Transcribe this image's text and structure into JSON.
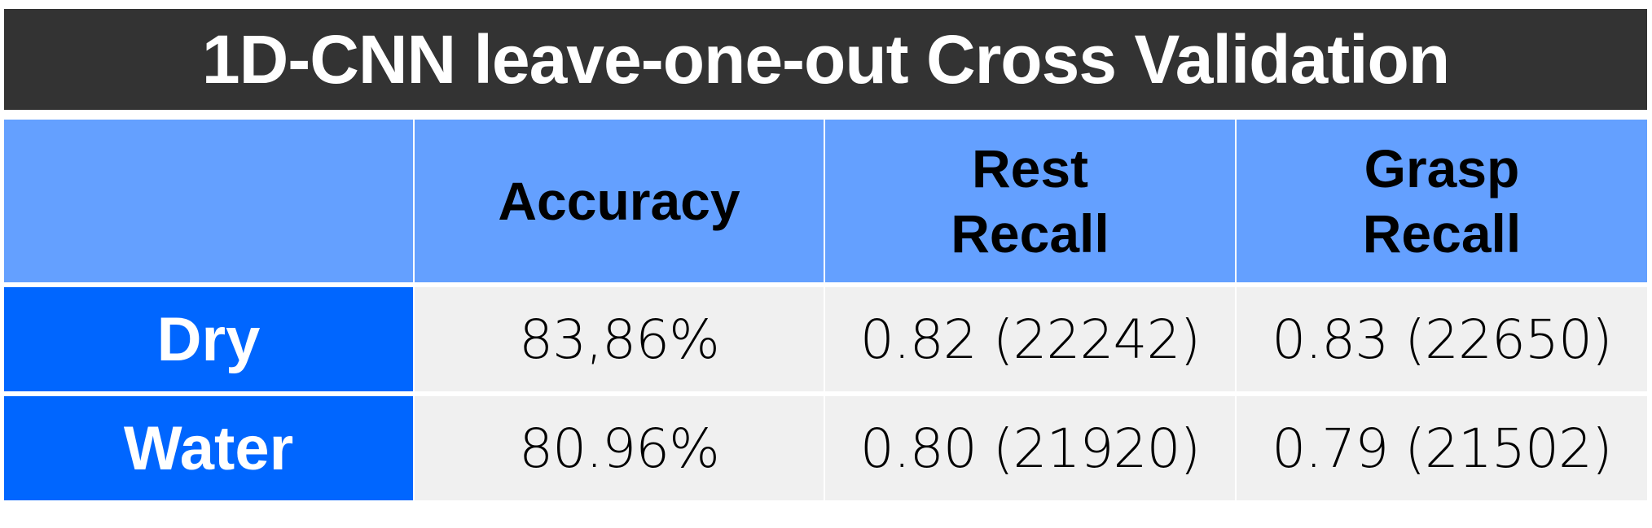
{
  "chart_data": {
    "type": "table",
    "title": "1D-CNN leave-one-out Cross Validation",
    "columns": [
      {
        "line1": "",
        "line2": ""
      },
      {
        "line1": "Accuracy",
        "line2": ""
      },
      {
        "line1": "Rest",
        "line2": "Recall"
      },
      {
        "line1": "Grasp",
        "line2": "Recall"
      }
    ],
    "rows": [
      {
        "label": "Dry",
        "accuracy": "83,86%",
        "rest_recall": "0.82 (22242)",
        "grasp_recall": "0.83 (22650)"
      },
      {
        "label": "Water",
        "accuracy": "80.96%",
        "rest_recall": "0.80 (21920)",
        "grasp_recall": "0.79 (21502)"
      }
    ]
  },
  "colors": {
    "title_bg": "#333333",
    "header_bg": "#64a0ff",
    "row_label_bg": "#0066ff",
    "data_bg": "#f0f0f0"
  }
}
